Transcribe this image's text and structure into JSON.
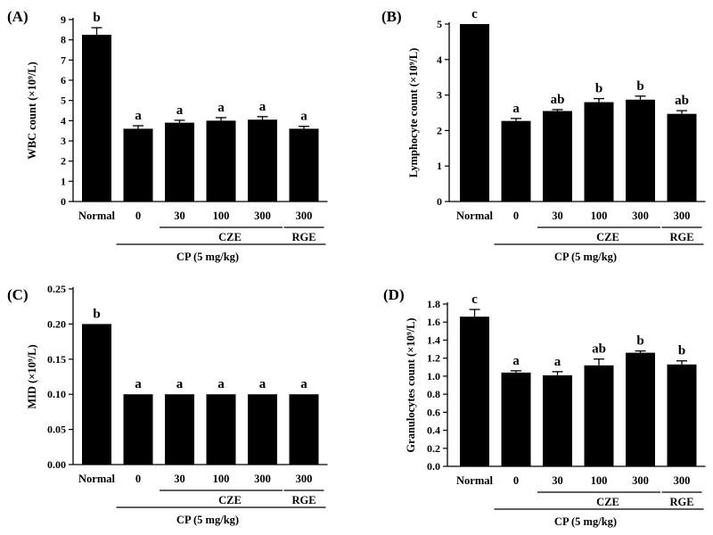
{
  "chart_data": [
    {
      "panel": "(A)",
      "type": "bar",
      "categories": [
        "Normal",
        "0",
        "30",
        "100",
        "300",
        "300"
      ],
      "values": [
        8.25,
        3.6,
        3.9,
        4.0,
        4.05,
        3.6
      ],
      "errors": [
        0.35,
        0.15,
        0.12,
        0.15,
        0.15,
        0.12
      ],
      "letters": [
        "b",
        "a",
        "a",
        "a",
        "a",
        "a"
      ],
      "ylabel": "WBC count (×10⁹/L)",
      "ylim": [
        0,
        9
      ],
      "yticks": [
        "0",
        "1",
        "2",
        "3",
        "4",
        "5",
        "6",
        "7",
        "8",
        "9"
      ],
      "groups": {
        "sub1": "CZE",
        "sub2": "RGE",
        "main": "CP (5 mg/kg)"
      }
    },
    {
      "panel": "(B)",
      "type": "bar",
      "categories": [
        "Normal",
        "0",
        "30",
        "100",
        "300",
        "300"
      ],
      "values": [
        5.0,
        2.27,
        2.55,
        2.8,
        2.87,
        2.47
      ],
      "errors": [
        0.0,
        0.07,
        0.04,
        0.1,
        0.1,
        0.09
      ],
      "letters": [
        "c",
        "a",
        "ab",
        "b",
        "b",
        "ab"
      ],
      "ylabel": "Lymphocyte count (×10⁹/L)",
      "ylim": [
        0,
        5
      ],
      "yticks": [
        "0",
        "1",
        "2",
        "3",
        "4",
        "5"
      ],
      "groups": {
        "sub1": "CZE",
        "sub2": "RGE",
        "main": "CP (5 mg/kg)"
      }
    },
    {
      "panel": "(C)",
      "type": "bar",
      "categories": [
        "Normal",
        "0",
        "30",
        "100",
        "300",
        "300"
      ],
      "values": [
        0.2,
        0.1,
        0.1,
        0.1,
        0.1,
        0.1
      ],
      "errors": [
        0,
        0,
        0,
        0,
        0,
        0
      ],
      "letters": [
        "b",
        "a",
        "a",
        "a",
        "a",
        "a"
      ],
      "ylabel": "MID (×10⁹/L)",
      "ylim": [
        0,
        0.25
      ],
      "yticks": [
        "0.00",
        "0.05",
        "0.10",
        "0.15",
        "0.20",
        "0.25"
      ],
      "groups": {
        "sub1": "CZE",
        "sub2": "RGE",
        "main": "CP (5 mg/kg)"
      }
    },
    {
      "panel": "(D)",
      "type": "bar",
      "categories": [
        "Normal",
        "0",
        "30",
        "100",
        "300",
        "300"
      ],
      "values": [
        1.66,
        1.04,
        1.01,
        1.12,
        1.26,
        1.13
      ],
      "errors": [
        0.08,
        0.02,
        0.04,
        0.07,
        0.02,
        0.04
      ],
      "letters": [
        "c",
        "a",
        "a",
        "ab",
        "b",
        "b"
      ],
      "ylabel": "Granulocytes count (×10⁹/L)",
      "ylim": [
        0,
        1.8
      ],
      "yticks": [
        "0.0",
        "0.2",
        "0.4",
        "0.6",
        "0.8",
        "1.0",
        "1.2",
        "1.4",
        "1.6",
        "1.8"
      ],
      "groups": {
        "sub1": "CZE",
        "sub2": "RGE",
        "main": "CP (5 mg/kg)"
      }
    }
  ]
}
